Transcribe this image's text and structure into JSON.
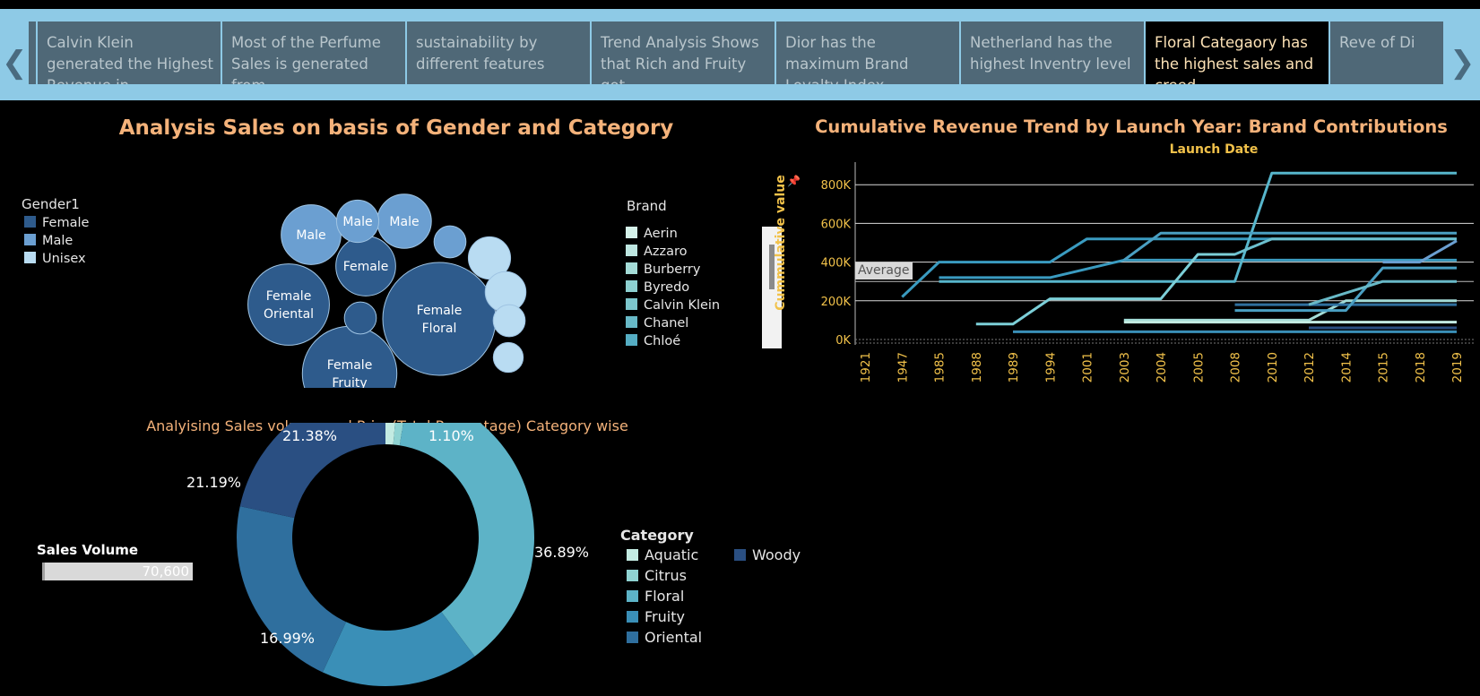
{
  "story": {
    "points": [
      {
        "text": "Calvin Klein generated the Highest Revenue in",
        "active": false
      },
      {
        "text": "Most of the Perfume Sales is generated from",
        "active": false
      },
      {
        "text": "sustainability by different features",
        "active": false
      },
      {
        "text": "Trend Analysis Shows that Rich and Fruity got",
        "active": false
      },
      {
        "text": "Dior has the maximum Brand Loyalty Index.",
        "active": false
      },
      {
        "text": "Netherland has the highest Inventry level",
        "active": false
      },
      {
        "text": "Floral Categaory has the highest sales and creed",
        "active": true
      },
      {
        "text": "Reve of Di",
        "active": false
      }
    ],
    "prev_glyph": "❮",
    "next_glyph": "❯"
  },
  "colors": {
    "female": "#2e5b8c",
    "male": "#6b9fd1",
    "unisex": "#b9dcf2",
    "aquatic": "#c3ebe2",
    "citrus": "#8fd3d2",
    "floral": "#5db3c7",
    "fruity": "#3a8fb7",
    "oriental": "#2f6f9e",
    "woody": "#2a4f82",
    "accent_title": "#f4b27a",
    "axis": "#f2c24a"
  },
  "bubble_panel": {
    "title": "Analysis Sales on basis of Gender and Category",
    "legend_title": "Gender1",
    "legend": [
      {
        "label": "Female",
        "color": "#2e5b8c"
      },
      {
        "label": "Male",
        "color": "#6b9fd1"
      },
      {
        "label": "Unisex",
        "color": "#b9dcf2"
      }
    ],
    "brand_legend_title": "Brand",
    "brands": [
      {
        "label": "Aerin",
        "color": "#d5f2ea"
      },
      {
        "label": "Azzaro",
        "color": "#bde6e0"
      },
      {
        "label": "Burberry",
        "color": "#a4dcd7"
      },
      {
        "label": "Byredo",
        "color": "#8dd0d0"
      },
      {
        "label": "Calvin Klein",
        "color": "#7cc6cc"
      },
      {
        "label": "Chanel",
        "color": "#68b9c7"
      },
      {
        "label": "Chloé",
        "color": "#55adc3"
      }
    ]
  },
  "line_panel": {
    "title": "Cumulative Revenue Trend by Launch Year: Brand Contributions",
    "x_title": "Launch Date",
    "y_title": "Cummulative value",
    "ref_line_label": "Average",
    "pin_glyph": "📌"
  },
  "donut_panel": {
    "title": "Analyising Sales volume and Price(Total Percentage) Category wise",
    "legend_title": "Category",
    "legend": [
      {
        "label": "Aquatic",
        "color": "#c3ebe2"
      },
      {
        "label": "Citrus",
        "color": "#8fd3d2"
      },
      {
        "label": "Floral",
        "color": "#5db3c7"
      },
      {
        "label": "Fruity",
        "color": "#3a8fb7"
      },
      {
        "label": "Oriental",
        "color": "#2f6f9e"
      },
      {
        "label": "Woody",
        "color": "#2a4f82"
      }
    ],
    "sales_volume_label": "Sales Volume",
    "sales_volume_value": "70,600"
  },
  "chart_data": [
    {
      "type": "bubble",
      "bubbles": [
        {
          "gender": "Female",
          "category": "Floral",
          "line1": "Female",
          "line2": "Floral",
          "value": 100
        },
        {
          "gender": "Female",
          "category": "Fruity",
          "line1": "Female",
          "line2": "Fruity",
          "value": 70
        },
        {
          "gender": "Female",
          "category": "Oriental",
          "line1": "Female",
          "line2": "Oriental",
          "value": 52
        },
        {
          "gender": "Female",
          "category": "",
          "line1": "Female",
          "line2": "",
          "value": 28
        },
        {
          "gender": "Female",
          "category": "",
          "line1": "",
          "line2": "",
          "value": 8
        },
        {
          "gender": "Male",
          "category": "",
          "line1": "Male",
          "line2": "",
          "value": 28
        },
        {
          "gender": "Male",
          "category": "",
          "line1": "Male",
          "line2": "",
          "value": 23
        },
        {
          "gender": "Male",
          "category": "",
          "line1": "Male",
          "line2": "",
          "value": 14
        },
        {
          "gender": "Male",
          "category": "",
          "line1": "",
          "line2": "",
          "value": 8
        },
        {
          "gender": "Unisex",
          "category": "",
          "line1": "",
          "line2": "",
          "value": 14
        },
        {
          "gender": "Unisex",
          "category": "",
          "line1": "",
          "line2": "",
          "value": 13
        },
        {
          "gender": "Unisex",
          "category": "",
          "line1": "",
          "line2": "",
          "value": 8
        },
        {
          "gender": "Unisex",
          "category": "",
          "line1": "",
          "line2": "",
          "value": 7
        }
      ]
    },
    {
      "type": "line",
      "title": "Cumulative Revenue Trend by Launch Year: Brand Contributions",
      "xlabel": "Launch Date",
      "ylabel": "Cummulative value",
      "categories": [
        "1921",
        "1947",
        "1985",
        "1988",
        "1989",
        "1994",
        "2001",
        "2003",
        "2004",
        "2005",
        "2008",
        "2010",
        "2012",
        "2014",
        "2015",
        "2018",
        "2019"
      ],
      "y_ticks": [
        "0K",
        "200K",
        "400K",
        "600K",
        "800K"
      ],
      "ylim": [
        0,
        860000
      ],
      "reference_line": {
        "label": "Average",
        "value": 300000
      },
      "series": [
        {
          "color": "#3a9bc0",
          "points": [
            [
              1,
              220000
            ],
            [
              2,
              400000
            ],
            [
              5,
              400000
            ],
            [
              6,
              520000
            ],
            [
              16,
              520000
            ]
          ]
        },
        {
          "color": "#3a9bc0",
          "points": [
            [
              2,
              320000
            ],
            [
              5,
              320000
            ],
            [
              7,
              410000
            ],
            [
              16,
              410000
            ]
          ]
        },
        {
          "color": "#57b6cc",
          "points": [
            [
              2,
              300000
            ],
            [
              10,
              300000
            ],
            [
              11,
              860000
            ],
            [
              16,
              860000
            ]
          ]
        },
        {
          "color": "#4a9fc2",
          "points": [
            [
              7,
              410000
            ],
            [
              8,
              550000
            ],
            [
              16,
              550000
            ]
          ]
        },
        {
          "color": "#6cc0cf",
          "points": [
            [
              9,
              440000
            ],
            [
              10,
              440000
            ],
            [
              11,
              520000
            ],
            [
              16,
              520000
            ]
          ]
        },
        {
          "color": "#7ccfd8",
          "points": [
            [
              3,
              80000
            ],
            [
              4,
              80000
            ],
            [
              5,
              210000
            ],
            [
              8,
              210000
            ],
            [
              9,
              440000
            ],
            [
              10,
              440000
            ]
          ]
        },
        {
          "color": "#3a8fb7",
          "points": [
            [
              4,
              40000
            ],
            [
              16,
              40000
            ]
          ]
        },
        {
          "color": "#a4dcd7",
          "points": [
            [
              7,
              100000
            ],
            [
              12,
              100000
            ],
            [
              13,
              200000
            ],
            [
              16,
              200000
            ]
          ]
        },
        {
          "color": "#c3ebe2",
          "points": [
            [
              7,
              90000
            ],
            [
              16,
              90000
            ]
          ]
        },
        {
          "color": "#2f6f9e",
          "points": [
            [
              10,
              180000
            ],
            [
              16,
              180000
            ]
          ]
        },
        {
          "color": "#4a9fc2",
          "points": [
            [
              10,
              150000
            ],
            [
              13,
              150000
            ],
            [
              14,
              370000
            ],
            [
              16,
              370000
            ]
          ]
        },
        {
          "color": "#68b9c7",
          "points": [
            [
              12,
              180000
            ],
            [
              14,
              300000
            ],
            [
              16,
              300000
            ]
          ]
        },
        {
          "color": "#2a4f82",
          "points": [
            [
              12,
              60000
            ],
            [
              16,
              60000
            ]
          ]
        },
        {
          "color": "#6b9fd1",
          "points": [
            [
              14,
              400000
            ],
            [
              15,
              400000
            ],
            [
              16,
              510000
            ]
          ]
        }
      ]
    },
    {
      "type": "pie",
      "title": "Analyising Sales volume and Price(Total Percentage) Category wise",
      "slices": [
        {
          "label": "Aquatic",
          "value": 1.31,
          "display": ""
        },
        {
          "label": "Citrus",
          "value": 1.1,
          "display": "1.10%"
        },
        {
          "label": "Floral",
          "value": 36.89,
          "display": "36.89%"
        },
        {
          "label": "Fruity",
          "value": 16.99,
          "display": "16.99%"
        },
        {
          "label": "Oriental",
          "value": 21.19,
          "display": "21.19%"
        },
        {
          "label": "Woody",
          "value": 21.38,
          "display": "21.38%"
        }
      ]
    }
  ]
}
